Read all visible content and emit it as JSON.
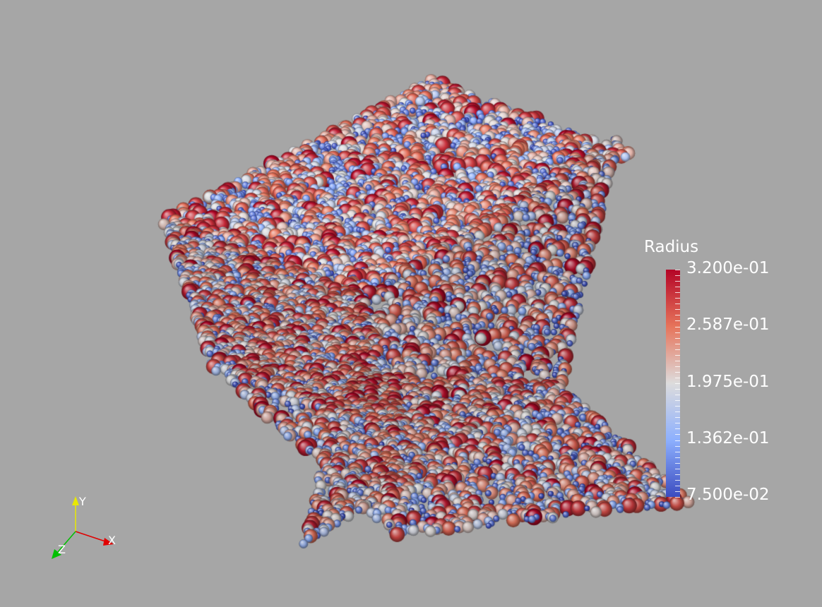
{
  "scalar_bar": {
    "title": "Radius",
    "labels": [
      "3.200e-01",
      "2.587e-01",
      "1.975e-01",
      "1.362e-01",
      "7.500e-02"
    ],
    "range": [
      0.075,
      0.32
    ],
    "colormap": [
      "#b40426",
      "#e6745b",
      "#dddcdc",
      "#8db0fe",
      "#3b4cc0"
    ]
  },
  "orientation_axes": {
    "x": "X",
    "y": "Y",
    "z": "Z",
    "x_color": "#e00000",
    "y_color": "#e8e800",
    "z_color": "#00c000"
  },
  "background_color": "#a6a6a6"
}
